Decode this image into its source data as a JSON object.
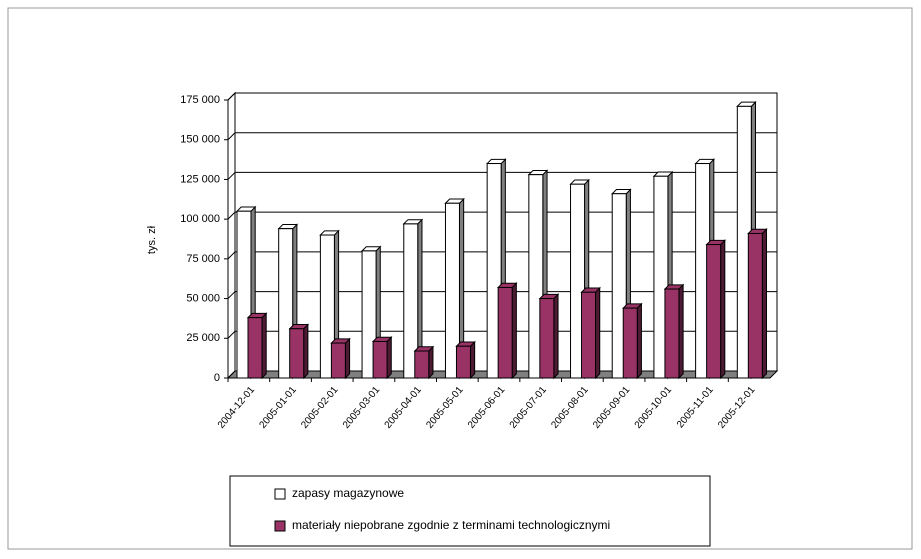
{
  "chart_data": {
    "type": "bar3d",
    "ylabel": "tys. zł",
    "categories": [
      "2004-12-01",
      "2005-01-01",
      "2005-02-01",
      "2005-03-01",
      "2005-04-01",
      "2005-05-01",
      "2005-06-01",
      "2005-07-01",
      "2005-08-01",
      "2005-09-01",
      "2005-10-01",
      "2005-11-01",
      "2005-12-01"
    ],
    "series": [
      {
        "name": "zapasy magazynowe",
        "color": "#ffffff",
        "values": [
          105000,
          94000,
          90000,
          80000,
          97000,
          110000,
          135000,
          128000,
          122000,
          116000,
          127000,
          135000,
          171000
        ]
      },
      {
        "name": "materiały niepobrane zgodnie z terminami technologicznymi",
        "color": "#993366",
        "values": [
          38000,
          31000,
          22000,
          23000,
          17000,
          20000,
          57000,
          50000,
          54000,
          44000,
          56000,
          84000,
          91000
        ]
      }
    ],
    "ylim": [
      0,
      175000
    ],
    "yticks": [
      0,
      {
        "value": 25000,
        "label": "25 000"
      },
      {
        "value": 50000,
        "label": "50 000"
      },
      {
        "value": 75000,
        "label": "75 000"
      },
      {
        "value": 100000,
        "label": "100 000"
      },
      {
        "value": 125000,
        "label": "125 000"
      },
      {
        "value": 150000,
        "label": "150 000"
      },
      {
        "value": 175000,
        "label": "175 000"
      }
    ],
    "grid": true,
    "legend": "bottom"
  }
}
